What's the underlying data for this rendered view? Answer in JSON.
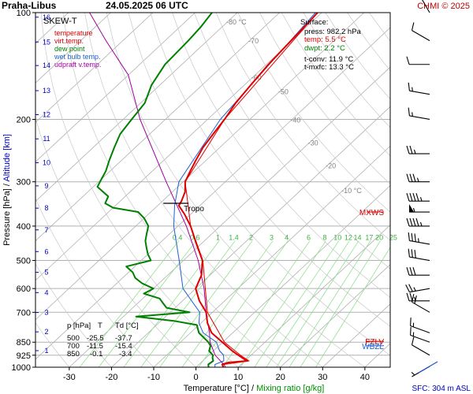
{
  "header": {
    "station": "Praha-Libus",
    "datetime": "24.05.2025 06 UTC",
    "credit": "CHMI © 2025"
  },
  "footer": {
    "sfc": "SFC: 304 m ASL"
  },
  "legend": {
    "title": "SKEW-T",
    "items": [
      {
        "label": "temperature",
        "color": "#e00000"
      },
      {
        "label": "virt.temp.",
        "color": "#e00000"
      },
      {
        "label": "dew point",
        "color": "#008000"
      },
      {
        "label": "wet bulb temp.",
        "color": "#2060d0"
      },
      {
        "label": "udpraft v.temp.",
        "color": "#a000a0"
      }
    ]
  },
  "surface": {
    "title": "Surface:",
    "press": "press: 982.2 hPa",
    "temp": "temp: 5.5 °C",
    "dwpt": "dwpt: 2.2 °C",
    "tconv": "t-conv: 11.9 °C",
    "tmxfc": "t-mxfc: 13.3 °C",
    "colors": {
      "temp": "#e00000",
      "dwpt": "#008000",
      "other": "#000000"
    }
  },
  "table": {
    "headers": [
      "p [hPa]",
      "T",
      "Td [°C]"
    ],
    "rows": [
      [
        "500",
        "-25.5",
        "-37.7"
      ],
      [
        "700",
        "-11.5",
        "-15.4"
      ],
      [
        "850",
        "-0.1",
        "-3.4"
      ]
    ]
  },
  "chart_data": {
    "type": "line",
    "ylabel": "Pressure [hPa]  /  Altitude [km]",
    "xlabel": "Temperature [°C]",
    "xlabel_sep": "/",
    "xlabel2": "Mixing ratio [g/kg]",
    "y_scale": "log",
    "ylim": [
      1000,
      100
    ],
    "xlim": [
      -38,
      46
    ],
    "pressure_ticks": [
      100,
      200,
      300,
      400,
      500,
      600,
      700,
      850,
      925,
      1000
    ],
    "temperature_ticks": [
      -30,
      -20,
      -10,
      0,
      10,
      20,
      30,
      40
    ],
    "altitude_ticks": [
      {
        "km": 1,
        "p": 898
      },
      {
        "km": 2,
        "p": 795
      },
      {
        "km": 3,
        "p": 701
      },
      {
        "km": 4,
        "p": 616
      },
      {
        "km": 5,
        "p": 540
      },
      {
        "km": 6,
        "p": 472
      },
      {
        "km": 7,
        "p": 410
      },
      {
        "km": 8,
        "p": 356
      },
      {
        "km": 9,
        "p": 308
      },
      {
        "km": 10,
        "p": 265
      },
      {
        "km": 11,
        "p": 227
      },
      {
        "km": 12,
        "p": 194
      },
      {
        "km": 13,
        "p": 166
      },
      {
        "km": 14,
        "p": 141
      },
      {
        "km": 15,
        "p": 121
      },
      {
        "km": 16,
        "p": 103
      }
    ],
    "isotherm_labels": [
      {
        "t": -80,
        "label": "-80 °C",
        "p": 108
      },
      {
        "t": -70,
        "label": "-70",
        "p": 122
      },
      {
        "t": -60,
        "label": "-60",
        "p": 155
      },
      {
        "t": -50,
        "label": "-50",
        "p": 170
      },
      {
        "t": -40,
        "label": "-40",
        "p": 204
      },
      {
        "t": -30,
        "label": "-30",
        "p": 237
      },
      {
        "t": -20,
        "label": "-20",
        "p": 275
      },
      {
        "t": -10,
        "label": "-10 °C",
        "p": 323
      }
    ],
    "mixing_ratio_lines": [
      {
        "w": 0.4,
        "label": "0.4"
      },
      {
        "w": 0.6,
        "label": "0.6"
      },
      {
        "w": 1,
        "label": "1"
      },
      {
        "w": 1.4,
        "label": "1.4"
      },
      {
        "w": 2,
        "label": "2"
      },
      {
        "w": 3,
        "label": "3"
      },
      {
        "w": 4,
        "label": "4"
      },
      {
        "w": 6,
        "label": "6"
      },
      {
        "w": 8,
        "label": "8"
      },
      {
        "w": 10,
        "label": "10"
      },
      {
        "w": 12,
        "label": "12"
      },
      {
        "w": 14,
        "label": "14"
      },
      {
        "w": 17,
        "label": "17"
      },
      {
        "w": 20,
        "label": "20"
      },
      {
        "w": 25,
        "label": "25"
      }
    ],
    "mixing_ratio_label_p": 420,
    "skew_deg_per_log": 39,
    "series": [
      {
        "name": "temperature",
        "color": "#e00000",
        "width": 2,
        "points": [
          [
            1000,
            6.5
          ],
          [
            982,
            5.5
          ],
          [
            970,
            6.5
          ],
          [
            960,
            10.5
          ],
          [
            950,
            9.5
          ],
          [
            925,
            7.0
          ],
          [
            900,
            4.5
          ],
          [
            850,
            -0.1
          ],
          [
            800,
            -5.0
          ],
          [
            750,
            -8.5
          ],
          [
            700,
            -11.5
          ],
          [
            650,
            -16.0
          ],
          [
            600,
            -20.0
          ],
          [
            550,
            -22.0
          ],
          [
            500,
            -25.5
          ],
          [
            450,
            -31.0
          ],
          [
            400,
            -37.0
          ],
          [
            370,
            -41.5
          ],
          [
            350,
            -45.0
          ],
          [
            340,
            -45.5
          ],
          [
            320,
            -47.0
          ],
          [
            300,
            -49.5
          ],
          [
            280,
            -51.0
          ],
          [
            260,
            -52.5
          ],
          [
            240,
            -54.0
          ],
          [
            220,
            -55.0
          ],
          [
            200,
            -56.0
          ],
          [
            180,
            -57.5
          ],
          [
            160,
            -58.5
          ],
          [
            140,
            -59.5
          ],
          [
            125,
            -60.0
          ],
          [
            110,
            -60.5
          ],
          [
            100,
            -61.0
          ]
        ]
      },
      {
        "name": "virt.temp.",
        "color": "#e00000",
        "width": 1,
        "points": [
          [
            982,
            5.9
          ],
          [
            960,
            11.0
          ],
          [
            925,
            7.5
          ],
          [
            850,
            0.4
          ],
          [
            700,
            -11.2
          ],
          [
            500,
            -25.4
          ],
          [
            400,
            -37.0
          ],
          [
            300,
            -49.5
          ],
          [
            200,
            -56.0
          ],
          [
            100,
            -61.0
          ]
        ]
      },
      {
        "name": "dew point",
        "color": "#008000",
        "width": 2,
        "points": [
          [
            1000,
            3.0
          ],
          [
            982,
            2.2
          ],
          [
            960,
            2.5
          ],
          [
            940,
            1.5
          ],
          [
            925,
            1.0
          ],
          [
            900,
            -1.0
          ],
          [
            870,
            -2.0
          ],
          [
            850,
            -3.4
          ],
          [
            800,
            -8.0
          ],
          [
            760,
            -10.5
          ],
          [
            740,
            -17.0
          ],
          [
            720,
            -27.0
          ],
          [
            700,
            -15.4
          ],
          [
            680,
            -22.0
          ],
          [
            660,
            -24.0
          ],
          [
            640,
            -26.0
          ],
          [
            620,
            -31.0
          ],
          [
            600,
            -30.0
          ],
          [
            580,
            -34.0
          ],
          [
            560,
            -37.0
          ],
          [
            540,
            -39.0
          ],
          [
            520,
            -42.0
          ],
          [
            500,
            -37.7
          ],
          [
            480,
            -40.0
          ],
          [
            460,
            -42.0
          ],
          [
            440,
            -44.0
          ],
          [
            420,
            -45.5
          ],
          [
            400,
            -47.0
          ],
          [
            380,
            -50.0
          ],
          [
            365,
            -53.0
          ],
          [
            355,
            -60.0
          ],
          [
            345,
            -63.0
          ],
          [
            330,
            -64.0
          ],
          [
            310,
            -69.0
          ],
          [
            295,
            -70.0
          ],
          [
            280,
            -71.0
          ],
          [
            260,
            -73.0
          ],
          [
            240,
            -75.0
          ],
          [
            220,
            -77.0
          ],
          [
            200,
            -78.0
          ],
          [
            180,
            -79.0
          ],
          [
            160,
            -82.0
          ],
          [
            140,
            -84.0
          ],
          [
            120,
            -84.5
          ],
          [
            110,
            -85.0
          ],
          [
            100,
            -86.0
          ]
        ]
      },
      {
        "name": "wet bulb temp.",
        "color": "#2060d0",
        "width": 1,
        "points": [
          [
            1000,
            4.5
          ],
          [
            982,
            3.8
          ],
          [
            960,
            5.0
          ],
          [
            925,
            3.5
          ],
          [
            900,
            1.5
          ],
          [
            850,
            -1.5
          ],
          [
            800,
            -7.0
          ],
          [
            750,
            -10.5
          ],
          [
            700,
            -13.0
          ],
          [
            600,
            -23.0
          ],
          [
            500,
            -31.0
          ],
          [
            400,
            -41.0
          ],
          [
            350,
            -46.0
          ],
          [
            300,
            -51.0
          ],
          [
            200,
            -57.0
          ],
          [
            100,
            -61.5
          ]
        ]
      },
      {
        "name": "udpraft v.temp.",
        "color": "#a000a0",
        "width": 1,
        "points": [
          [
            1000,
            7.0
          ],
          [
            982,
            5.9
          ],
          [
            925,
            1.5
          ],
          [
            850,
            -3.0
          ],
          [
            800,
            -5.5
          ],
          [
            700,
            -11.5
          ],
          [
            600,
            -18.0
          ],
          [
            500,
            -26.5
          ],
          [
            400,
            -38.0
          ],
          [
            300,
            -54.0
          ],
          [
            200,
            -76.0
          ],
          [
            150,
            -90.0
          ],
          [
            120,
            -104.0
          ],
          [
            100,
            -115.0
          ]
        ]
      }
    ],
    "special_levels": [
      {
        "label": "Tropo",
        "p": 345,
        "color": "#000000"
      },
      {
        "label": "MXWS",
        "p": 365,
        "color": "#d00000"
      },
      {
        "label": "FZLV",
        "p": 845,
        "color": "#d00000"
      },
      {
        "label": "WBZL",
        "p": 870,
        "color": "#2060d0"
      }
    ],
    "wind_barbs": [
      {
        "p": 995,
        "dir": 240,
        "kt": 5
      },
      {
        "p": 925,
        "dir": 300,
        "kt": 10
      },
      {
        "p": 850,
        "dir": 290,
        "kt": 15
      },
      {
        "p": 800,
        "dir": 290,
        "kt": 15
      },
      {
        "p": 700,
        "dir": 300,
        "kt": 20
      },
      {
        "p": 650,
        "dir": 270,
        "kt": 25
      },
      {
        "p": 600,
        "dir": 260,
        "kt": 25
      },
      {
        "p": 550,
        "dir": 270,
        "kt": 30
      },
      {
        "p": 500,
        "dir": 280,
        "kt": 30
      },
      {
        "p": 450,
        "dir": 280,
        "kt": 35
      },
      {
        "p": 400,
        "dir": 270,
        "kt": 45
      },
      {
        "p": 365,
        "dir": 270,
        "kt": 55
      },
      {
        "p": 340,
        "dir": 270,
        "kt": 45
      },
      {
        "p": 300,
        "dir": 270,
        "kt": 35
      },
      {
        "p": 250,
        "dir": 270,
        "kt": 25
      },
      {
        "p": 200,
        "dir": 280,
        "kt": 15
      },
      {
        "p": 170,
        "dir": 280,
        "kt": 15
      },
      {
        "p": 140,
        "dir": 270,
        "kt": 10
      },
      {
        "p": 120,
        "dir": 300,
        "kt": 10
      },
      {
        "p": 100,
        "dir": 330,
        "kt": 15
      }
    ]
  }
}
